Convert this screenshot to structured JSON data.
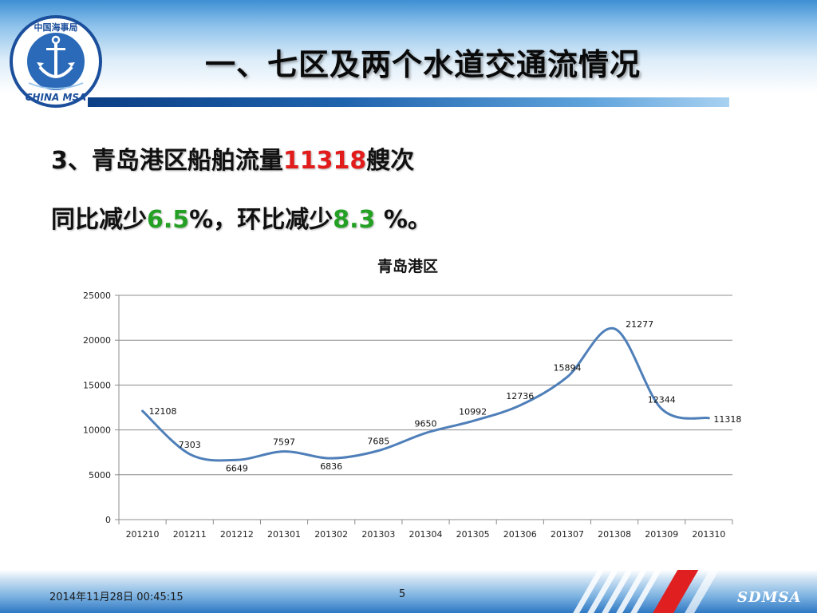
{
  "header": {
    "title": "一、七区及两个水道交通流情况",
    "logo_top_text": "中国海事局",
    "logo_bottom_text": "CHINA MSA"
  },
  "content": {
    "line1_prefix": "3、青岛港区船舶流量",
    "line1_value": "11318",
    "line1_suffix": "艘次",
    "line2_prefix": "同比减少",
    "line2_value1": "6.5",
    "line2_middle": "%，环比减少",
    "line2_value2": "8.3",
    "line2_suffix": " %。"
  },
  "chart_data": {
    "type": "line",
    "title": "青岛港区",
    "xlabel": "",
    "ylabel": "",
    "categories": [
      "201210",
      "201211",
      "201212",
      "201301",
      "201302",
      "201303",
      "201304",
      "201305",
      "201306",
      "201307",
      "201308",
      "201309",
      "201310"
    ],
    "series": [
      {
        "values": [
          12108,
          7303,
          6649,
          7597,
          6836,
          7685,
          9650,
          10992,
          12736,
          15894,
          21277,
          12344,
          11318
        ]
      }
    ],
    "data_labels": [
      "12108",
      "7303",
      "6649",
      "7597",
      "6836",
      "7685",
      "9650",
      "10992",
      "12736",
      "15894",
      "21277",
      "12344",
      "11318"
    ],
    "ylim": [
      0,
      25000
    ],
    "yticks": [
      0,
      5000,
      10000,
      15000,
      20000,
      25000
    ],
    "grid": true,
    "line_color": "#4f7fb9"
  },
  "footer": {
    "date": "2014年11月28日  00:45:15",
    "page": "5",
    "brand": "SDMSA"
  },
  "colors": {
    "accent_red": "#e21b1b",
    "accent_green": "#24a024",
    "header_blue": "#1e63ad"
  }
}
